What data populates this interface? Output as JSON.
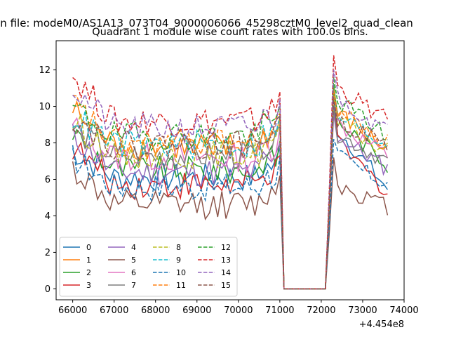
{
  "figure": {
    "suptitle": "...n file: modeM0/AS1A13_073T04_9000006066_45298cztM0_level2_quad_clean",
    "title": "Quadrant 1 module wise count rates with 100.0s bins.",
    "offset_label": "+4.454e8"
  },
  "chart_data": {
    "type": "line",
    "title": "Quadrant 1 module wise count rates with 100.0s bins.",
    "xlabel": "",
    "ylabel": "",
    "x_offset": 445400000,
    "x_range": [
      66000,
      73600
    ],
    "xlim": [
      65600,
      74000
    ],
    "ylim": [
      -0.6,
      13.6
    ],
    "xticks": [
      66000,
      67000,
      68000,
      69000,
      70000,
      71000,
      72000,
      73000,
      74000
    ],
    "yticks": [
      0,
      2,
      4,
      6,
      8,
      10,
      12
    ],
    "bin_seconds": 100,
    "gap": {
      "drop_start": 71000,
      "zero_from": 71100,
      "zero_to": 72100,
      "peak_at": 72300
    },
    "grid": false,
    "legend": {
      "position": "lower-left",
      "ncol": 4
    },
    "series": [
      {
        "name": "0",
        "color": "#1f77b4",
        "dash": "solid",
        "level": 6.1,
        "start": 7.6,
        "peak": 10.5,
        "post": 9.0,
        "end": 5.5
      },
      {
        "name": "1",
        "color": "#ff7f0e",
        "dash": "solid",
        "level": 7.8,
        "start": 9.8,
        "peak": 10.9,
        "post": 9.8,
        "end": 7.6
      },
      {
        "name": "2",
        "color": "#2ca02c",
        "dash": "solid",
        "level": 6.5,
        "start": 8.6,
        "peak": 11.2,
        "post": 9.4,
        "end": 6.8
      },
      {
        "name": "3",
        "color": "#d62728",
        "dash": "solid",
        "level": 5.7,
        "start": 7.8,
        "peak": 10.0,
        "post": 8.2,
        "end": 5.3
      },
      {
        "name": "4",
        "color": "#9467bd",
        "dash": "solid",
        "level": 6.4,
        "start": 8.4,
        "peak": 9.6,
        "post": 8.5,
        "end": 6.6
      },
      {
        "name": "5",
        "color": "#8c564b",
        "dash": "solid",
        "level": 4.6,
        "start": 6.6,
        "peak": 7.2,
        "post": 5.8,
        "end": 4.5
      },
      {
        "name": "6",
        "color": "#e377c2",
        "dash": "solid",
        "level": 7.2,
        "start": 8.9,
        "peak": 10.5,
        "post": 9.2,
        "end": 7.3
      },
      {
        "name": "7",
        "color": "#7f7f7f",
        "dash": "solid",
        "level": 7.3,
        "start": 8.8,
        "peak": 10.0,
        "post": 8.6,
        "end": 7.0
      },
      {
        "name": "8",
        "color": "#bcbd22",
        "dash": "dashed",
        "level": 7.4,
        "start": 9.2,
        "peak": 10.6,
        "post": 9.3,
        "end": 7.5
      },
      {
        "name": "9",
        "color": "#17becf",
        "dash": "dashed",
        "level": 7.9,
        "start": 9.5,
        "peak": 11.0,
        "post": 9.6,
        "end": 7.9
      },
      {
        "name": "10",
        "color": "#1f77b4",
        "dash": "dashed",
        "level": 5.6,
        "start": 7.2,
        "peak": 8.2,
        "post": 7.4,
        "end": 5.7
      },
      {
        "name": "11",
        "color": "#ff7f0e",
        "dash": "dashed",
        "level": 8.0,
        "start": 10.2,
        "peak": 11.0,
        "post": 10.0,
        "end": 8.0
      },
      {
        "name": "12",
        "color": "#2ca02c",
        "dash": "dashed",
        "level": 8.4,
        "start": 9.9,
        "peak": 11.6,
        "post": 10.5,
        "end": 8.4
      },
      {
        "name": "13",
        "color": "#d62728",
        "dash": "dashed",
        "level": 9.2,
        "start": 11.7,
        "peak": 12.8,
        "post": 11.2,
        "end": 9.2
      },
      {
        "name": "14",
        "color": "#9467bd",
        "dash": "dashed",
        "level": 8.8,
        "start": 11.0,
        "peak": 12.0,
        "post": 10.6,
        "end": 8.6
      },
      {
        "name": "15",
        "color": "#8c564b",
        "dash": "dashed",
        "level": 7.9,
        "start": 9.4,
        "peak": 10.5,
        "post": 9.4,
        "end": 7.8
      }
    ]
  }
}
